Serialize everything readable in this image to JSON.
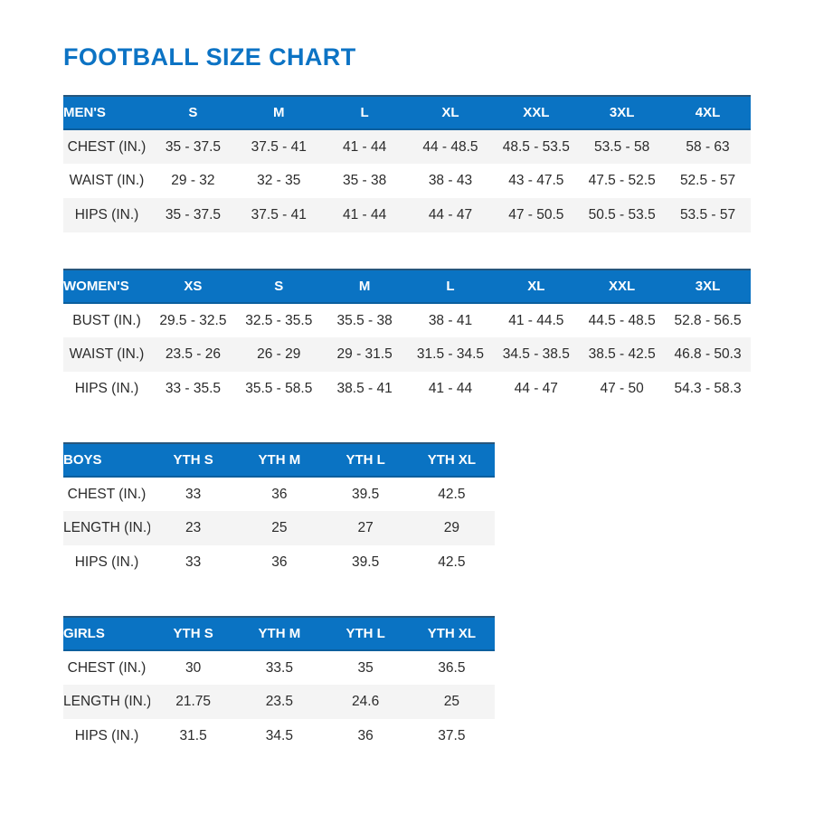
{
  "page": {
    "title": "FOOTBALL SIZE CHART"
  },
  "colors": {
    "title_blue": "#0c73c4",
    "header_bg_blue": "#0a73c3",
    "header_text": "#ffffff",
    "row_stripe_gray": "#f4f4f4",
    "body_text": "#2b2b2b"
  },
  "tables": [
    {
      "id": "mens",
      "label": "MEN'S",
      "columns": [
        "S",
        "M",
        "L",
        "XL",
        "XXL",
        "3XL",
        "4XL"
      ],
      "rows": [
        {
          "label": "CHEST (IN.)",
          "values": [
            "35 - 37.5",
            "37.5 - 41",
            "41 - 44",
            "44 - 48.5",
            "48.5 - 53.5",
            "53.5 - 58",
            "58 - 63"
          ]
        },
        {
          "label": "WAIST (IN.)",
          "values": [
            "29 - 32",
            "32 - 35",
            "35 - 38",
            "38 - 43",
            "43 - 47.5",
            "47.5 - 52.5",
            "52.5 - 57"
          ]
        },
        {
          "label": "HIPS (IN.)",
          "values": [
            "35 - 37.5",
            "37.5 - 41",
            "41 - 44",
            "44 - 47",
            "47 - 50.5",
            "50.5 - 53.5",
            "53.5 - 57"
          ]
        }
      ]
    },
    {
      "id": "womens",
      "label": "WOMEN'S",
      "columns": [
        "XS",
        "S",
        "M",
        "L",
        "XL",
        "XXL",
        "3XL"
      ],
      "rows": [
        {
          "label": "BUST (IN.)",
          "values": [
            "29.5 - 32.5",
            "32.5 - 35.5",
            "35.5 - 38",
            "38 - 41",
            "41 - 44.5",
            "44.5 - 48.5",
            "52.8 - 56.5"
          ]
        },
        {
          "label": "WAIST (IN.)",
          "values": [
            "23.5 - 26",
            "26 - 29",
            "29 - 31.5",
            "31.5 - 34.5",
            "34.5 - 38.5",
            "38.5 - 42.5",
            "46.8 - 50.3"
          ]
        },
        {
          "label": "HIPS (IN.)",
          "values": [
            "33 - 35.5",
            "35.5 - 58.5",
            "38.5 - 41",
            "41 - 44",
            "44 - 47",
            "47 - 50",
            "54.3 - 58.3"
          ]
        }
      ]
    },
    {
      "id": "boys",
      "label": "BOYS",
      "columns": [
        "YTH S",
        "YTH M",
        "YTH L",
        "YTH XL"
      ],
      "rows": [
        {
          "label": "CHEST (IN.)",
          "values": [
            "33",
            "36",
            "39.5",
            "42.5"
          ]
        },
        {
          "label": "LENGTH (IN.)",
          "values": [
            "23",
            "25",
            "27",
            "29"
          ]
        },
        {
          "label": "HIPS (IN.)",
          "values": [
            "33",
            "36",
            "39.5",
            "42.5"
          ]
        }
      ]
    },
    {
      "id": "girls",
      "label": "GIRLS",
      "columns": [
        "YTH S",
        "YTH M",
        "YTH L",
        "YTH XL"
      ],
      "rows": [
        {
          "label": "CHEST (IN.)",
          "values": [
            "30",
            "33.5",
            "35",
            "36.5"
          ]
        },
        {
          "label": "LENGTH (IN.)",
          "values": [
            "21.75",
            "23.5",
            "24.6",
            "25"
          ]
        },
        {
          "label": "HIPS (IN.)",
          "values": [
            "31.5",
            "34.5",
            "36",
            "37.5"
          ]
        }
      ]
    }
  ]
}
